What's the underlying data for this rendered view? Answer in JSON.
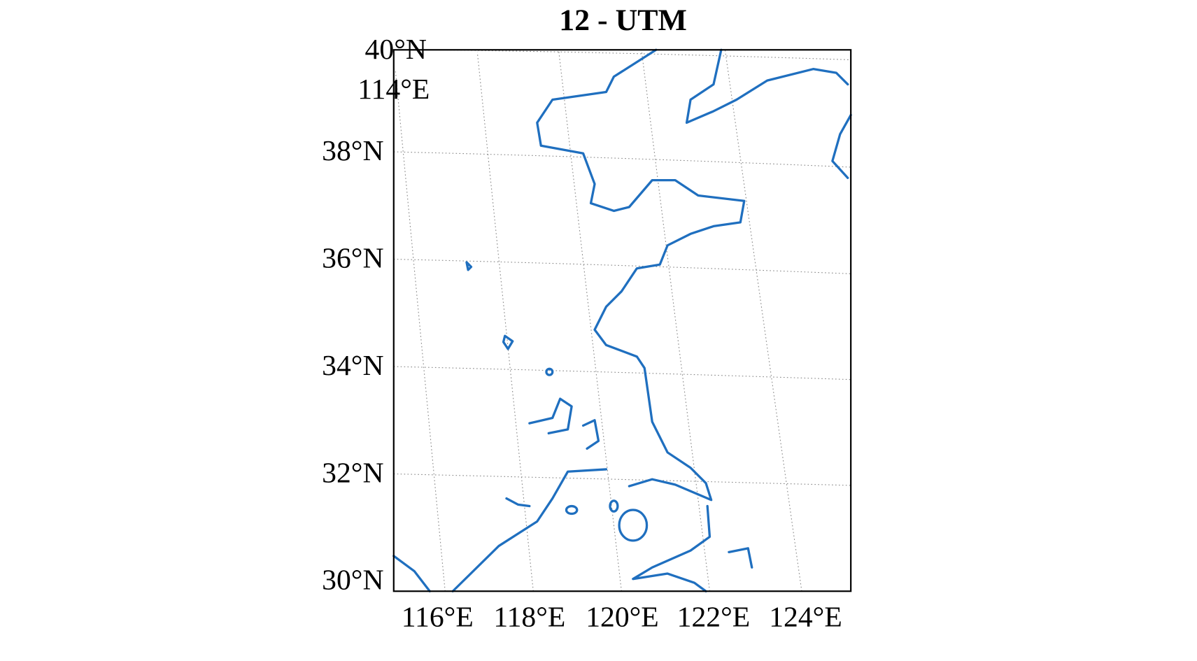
{
  "title": "12 - UTM",
  "lat_labels": [
    "40°N",
    "38°N",
    "36°N",
    "34°N",
    "32°N",
    "30°N"
  ],
  "lon_labels": [
    "114°E",
    "116°E",
    "118°E",
    "120°E",
    "122°E",
    "124°E"
  ]
}
